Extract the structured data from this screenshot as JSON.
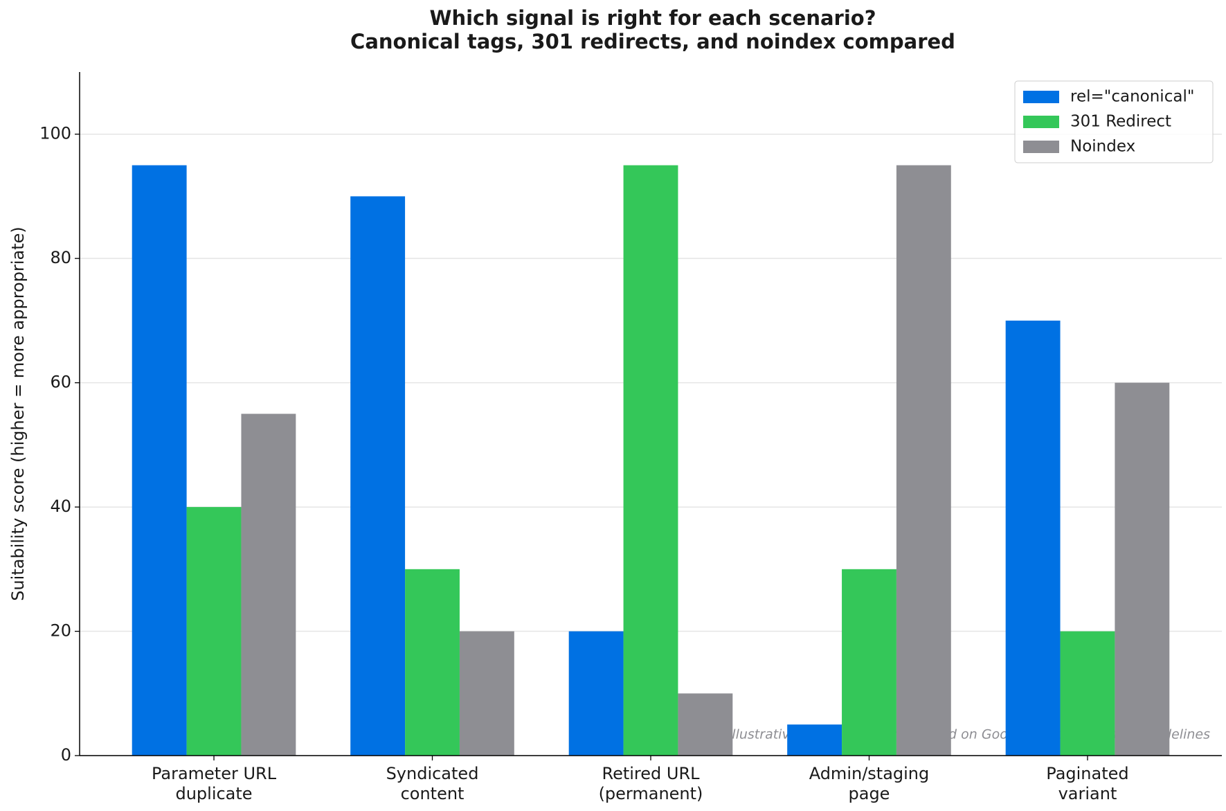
{
  "chart_data": {
    "type": "bar",
    "title": [
      "Which signal is right for each scenario?",
      "Canonical tags, 301 redirects, and noindex compared"
    ],
    "y_label": "Suitability score (higher = more appropriate)",
    "annotation": "Illustrative suitability scores based on Google canonicalization guidelines",
    "categories": [
      [
        "Parameter URL",
        "duplicate"
      ],
      [
        "Syndicated",
        "content"
      ],
      [
        "Retired URL",
        "(permanent)"
      ],
      [
        "Admin/staging",
        "page"
      ],
      [
        "Paginated",
        "variant"
      ]
    ],
    "series": [
      {
        "name": "rel=\"canonical\"",
        "color": "#0071e3",
        "values": [
          95,
          90,
          20,
          5,
          70
        ]
      },
      {
        "name": "301 Redirect",
        "color": "#34c759",
        "values": [
          40,
          30,
          95,
          30,
          20
        ]
      },
      {
        "name": "Noindex",
        "color": "#8e8e93",
        "values": [
          55,
          20,
          10,
          95,
          60
        ]
      }
    ],
    "ylim": [
      0,
      110
    ],
    "yticks": [
      0,
      20,
      40,
      60,
      80,
      100
    ],
    "grid": true,
    "legend": "upper right"
  }
}
